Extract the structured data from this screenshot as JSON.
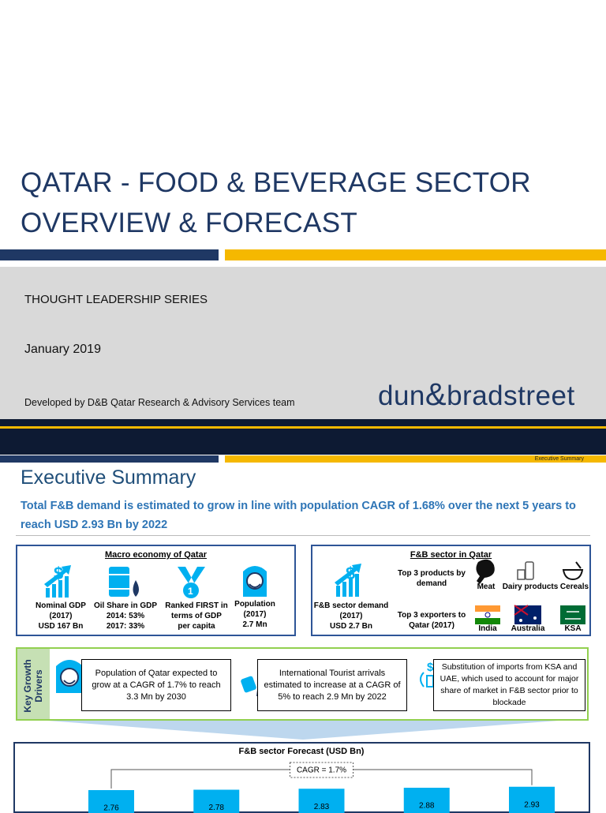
{
  "cover": {
    "title_lines": [
      "QATAR - FOOD & BEVERAGE SECTOR",
      "OVERVIEW & FORECAST"
    ],
    "series": "THOUGHT LEADERSHIP SERIES",
    "date": "January 2019",
    "developed_by": "Developed by D&B Qatar Research & Advisory Services team",
    "logo": {
      "left": "dun",
      "amp": "&",
      "right": "bradstreet"
    }
  },
  "page": {
    "section_tag": "Executive Summary",
    "heading": "Executive Summary",
    "subtitle": "Total F&B demand is estimated to grow in line with population CAGR of 1.68% over the next 5 years to reach USD 2.93 Bn by 2022"
  },
  "macro": {
    "title": "Macro economy of Qatar",
    "items": [
      [
        "Nominal GDP",
        "(2017)",
        "USD 167 Bn"
      ],
      [
        "Oil Share in GDP",
        "2014: 53%",
        "2017: 33%"
      ],
      [
        "Ranked FIRST in",
        "terms of GDP",
        "per capita"
      ],
      [
        "Population",
        "(2017)",
        "2.7 Mn"
      ]
    ]
  },
  "fb": {
    "title": "F&B sector in Qatar",
    "demand": [
      "F&B sector demand",
      "(2017)",
      "USD 2.7 Bn"
    ],
    "products_label": [
      "Top 3 products by",
      "demand"
    ],
    "products": [
      "Meat",
      "Dairy products",
      "Cereals"
    ],
    "exporters_label": [
      "Top 3 exporters to",
      "Qatar (2017)"
    ],
    "exporters": [
      "India",
      "Australia",
      "KSA"
    ]
  },
  "drivers": {
    "label": [
      "Key Growth",
      "Drivers"
    ],
    "items": [
      "Population of Qatar expected to grow at a CAGR of 1.7% to reach 3.3 Mn by 2030",
      "International Tourist arrivals estimated to increase at a CAGR of 5% to reach 2.9 Mn by 2022",
      "Substitution of imports from KSA and UAE, which used to account for major share of market in F&B sector prior to blockade"
    ]
  },
  "chart_data": {
    "type": "bar",
    "title": "F&B sector Forecast (USD Bn)",
    "annotation": "CAGR = 1.7%",
    "values": [
      2.76,
      2.78,
      2.83,
      2.88,
      2.93
    ],
    "color": "#00b0f0"
  }
}
